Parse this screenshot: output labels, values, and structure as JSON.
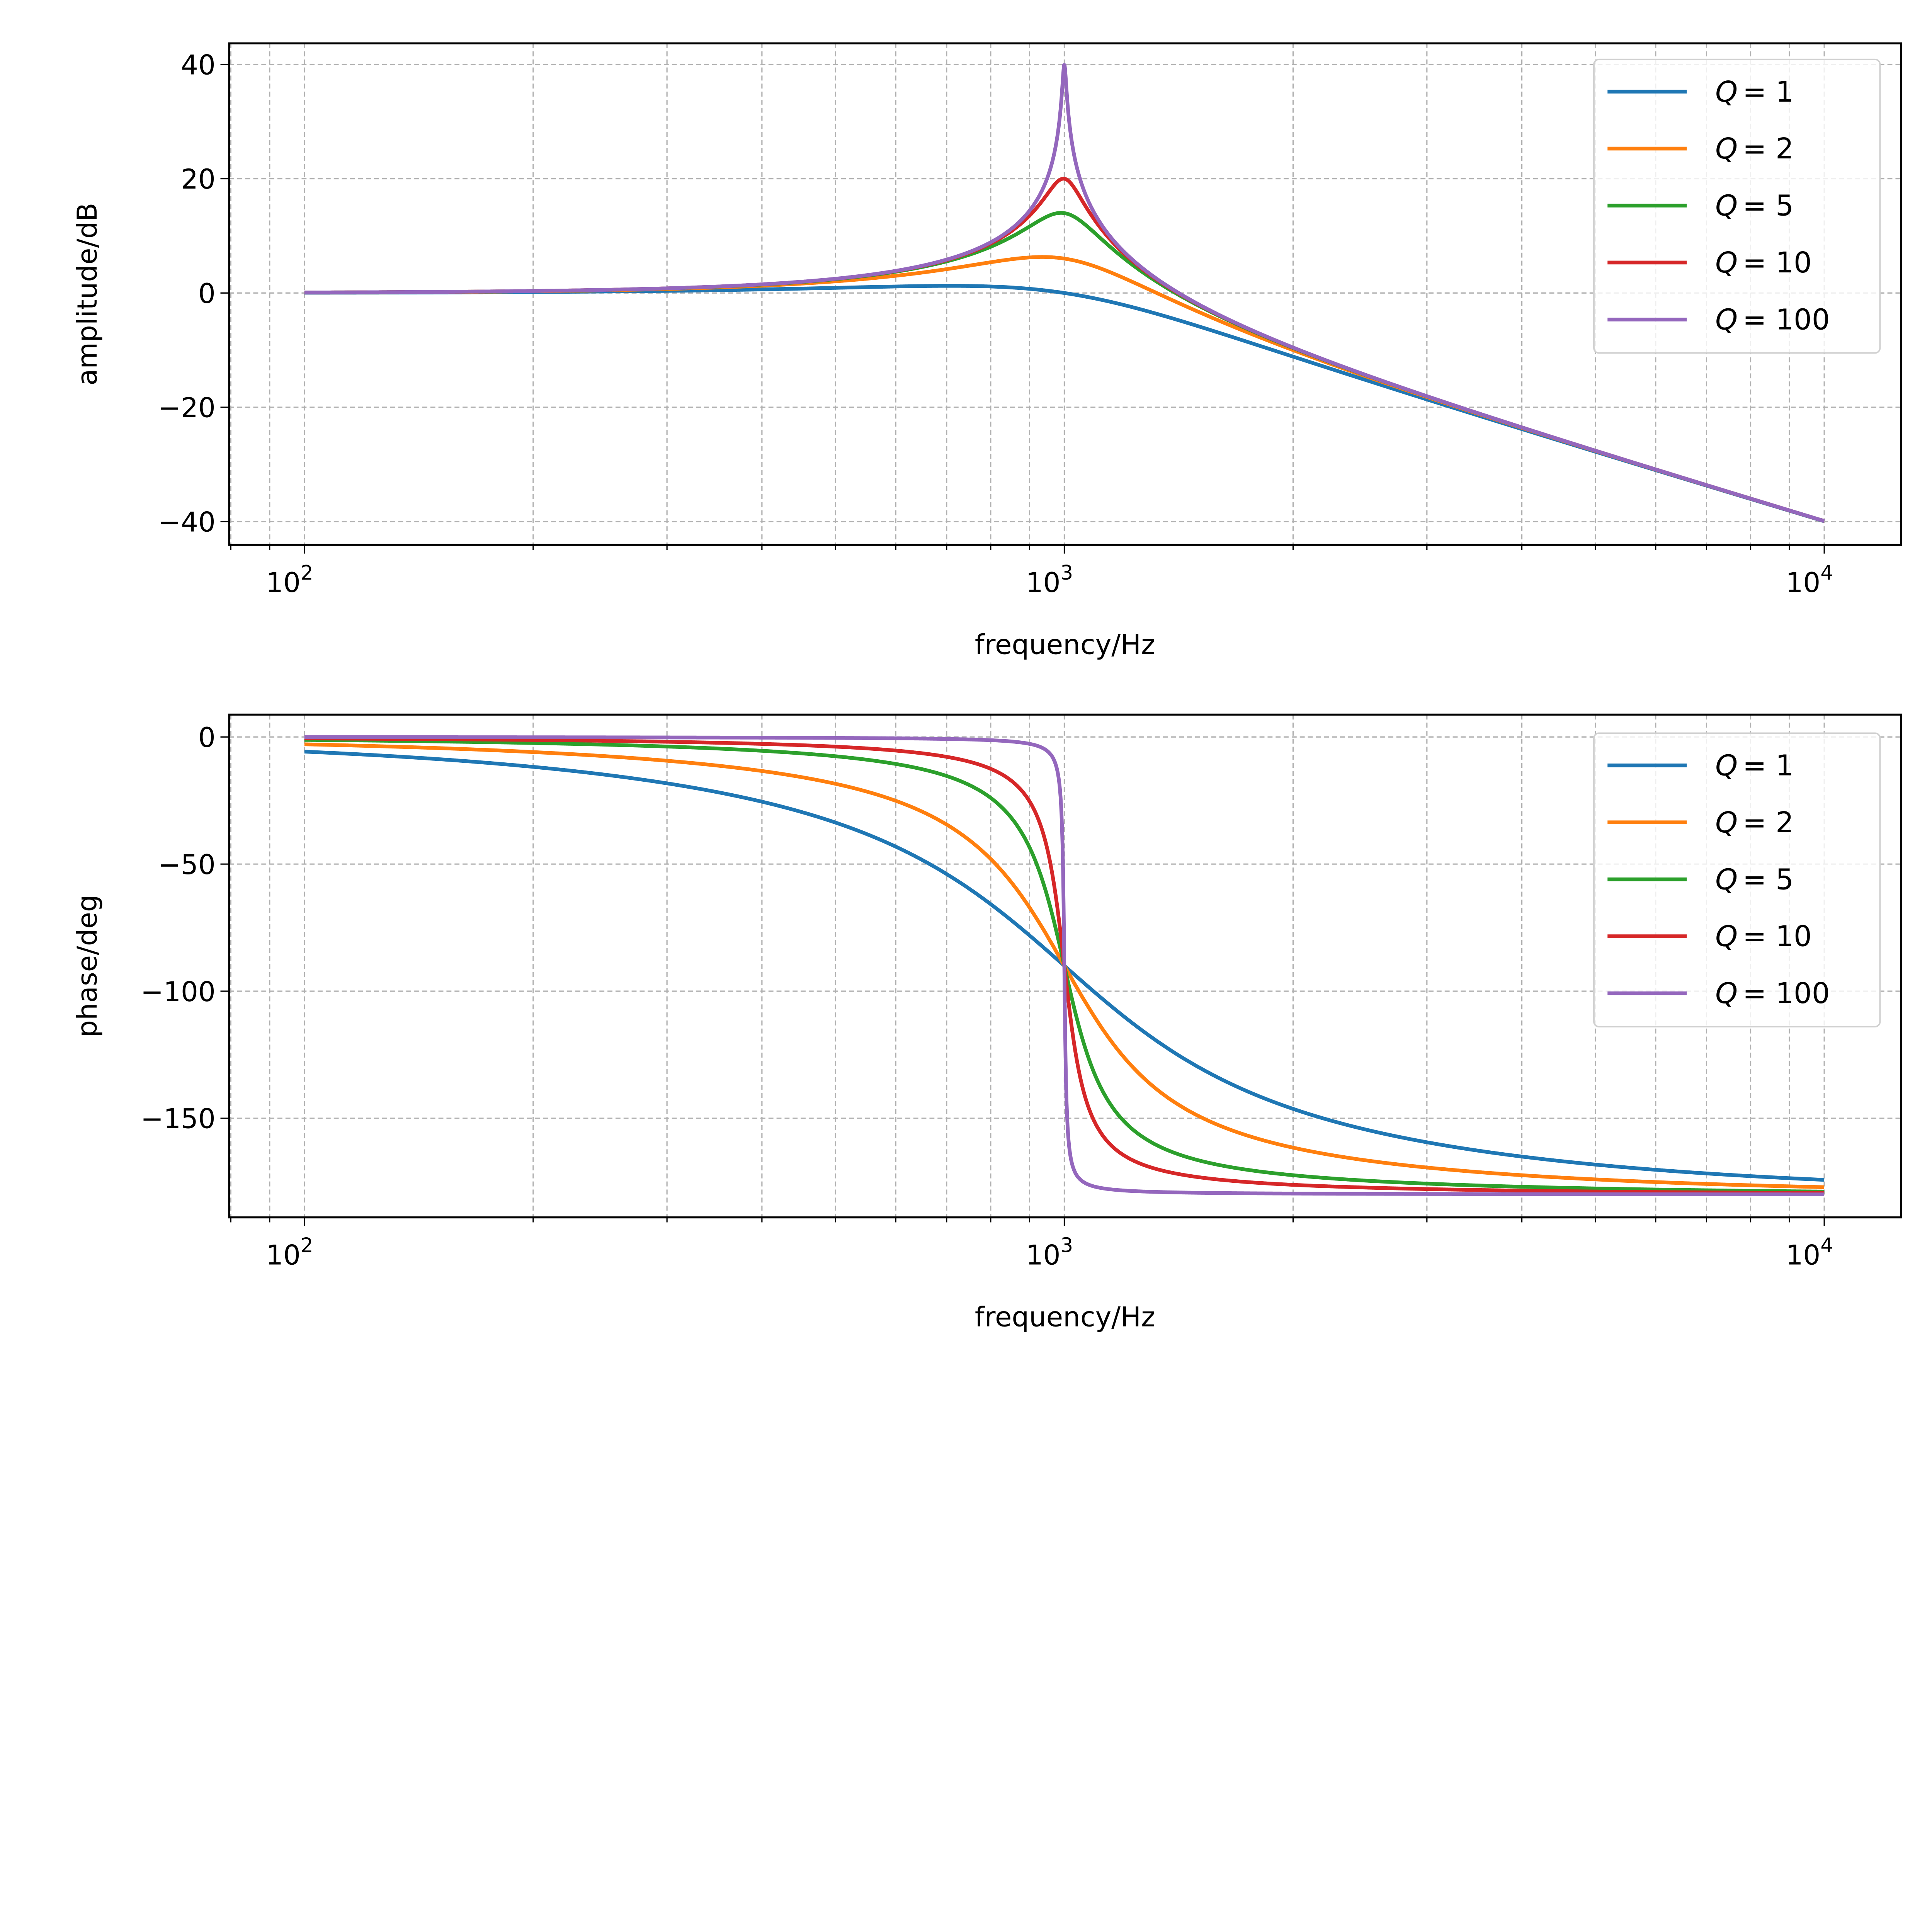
{
  "chart_data": [
    {
      "type": "line",
      "title": "",
      "xlabel": "frequency/Hz",
      "ylabel": "amplitude/dB",
      "xscale": "log",
      "xlim": [
        79.6,
        12620
      ],
      "ylim": [
        -44.1,
        43.7
      ],
      "xticks": [
        {
          "base": "10",
          "exp": "2",
          "value": 100
        },
        {
          "base": "10",
          "exp": "3",
          "value": 1000
        },
        {
          "base": "10",
          "exp": "4",
          "value": 10000
        }
      ],
      "yticks": [
        {
          "label": "40",
          "value": 40
        },
        {
          "label": "20",
          "value": 20
        },
        {
          "label": "0",
          "value": 0
        },
        {
          "label": "−20",
          "value": -20
        },
        {
          "label": "−40",
          "value": -40
        }
      ],
      "grid": true,
      "legend_position": "top-right",
      "quantity": "amplitude_db"
    },
    {
      "type": "line",
      "title": "",
      "xlabel": "frequency/Hz",
      "ylabel": "phase/deg",
      "xscale": "log",
      "xlim": [
        79.6,
        12620
      ],
      "ylim": [
        -189,
        8.8
      ],
      "xticks": [
        {
          "base": "10",
          "exp": "2",
          "value": 100
        },
        {
          "base": "10",
          "exp": "3",
          "value": 1000
        },
        {
          "base": "10",
          "exp": "4",
          "value": 10000
        }
      ],
      "yticks": [
        {
          "label": "0",
          "value": 0
        },
        {
          "label": "−50",
          "value": -50
        },
        {
          "label": "−100",
          "value": -100
        },
        {
          "label": "−150",
          "value": -150
        }
      ],
      "grid": true,
      "legend_position": "top-right",
      "quantity": "phase_deg"
    }
  ],
  "model": {
    "f0": 1000,
    "f_range": [
      100,
      10000
    ],
    "samples": 3000
  },
  "series": [
    {
      "name": "Q = 1",
      "q_label": "Q",
      "value_label": "= 1",
      "Q": 1,
      "color": "#1f77b4"
    },
    {
      "name": "Q = 2",
      "q_label": "Q",
      "value_label": "= 2",
      "Q": 2,
      "color": "#ff7f0e"
    },
    {
      "name": "Q = 5",
      "q_label": "Q",
      "value_label": "= 5",
      "Q": 5,
      "color": "#2ca02c"
    },
    {
      "name": "Q = 10",
      "q_label": "Q",
      "value_label": "= 10",
      "Q": 10,
      "color": "#d62728"
    },
    {
      "name": "Q = 100",
      "q_label": "Q",
      "value_label": "= 100",
      "Q": 100,
      "color": "#9467bd"
    }
  ]
}
